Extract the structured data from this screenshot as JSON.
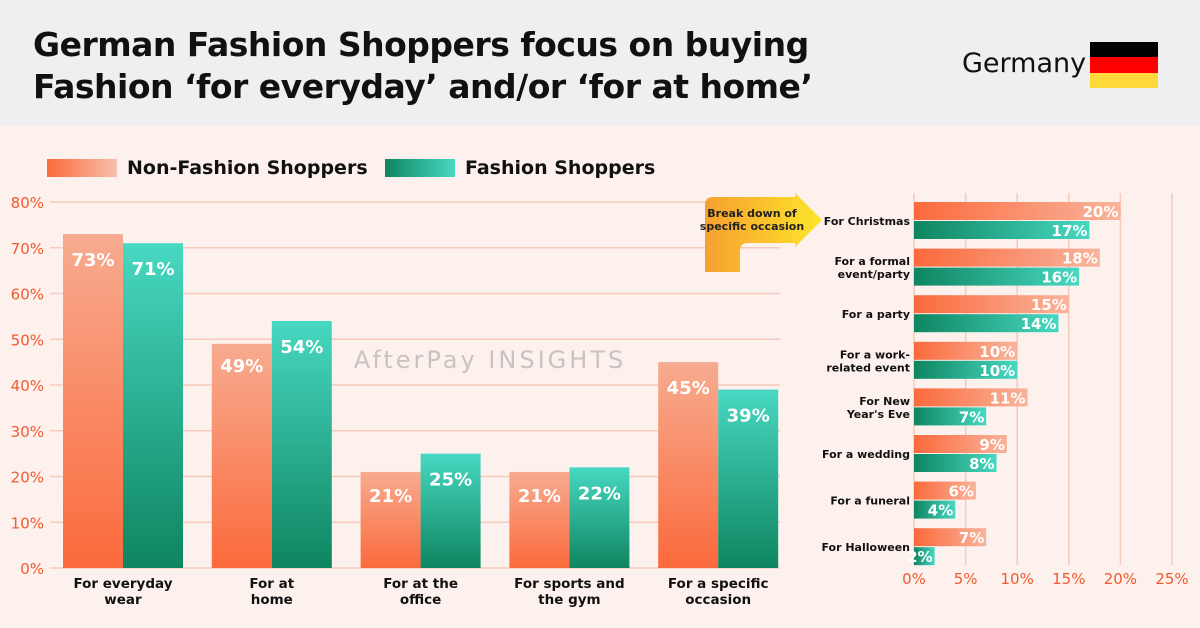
{
  "header": {
    "title_line1": "German Fashion Shoppers focus on buying",
    "title_line2": "Fashion ‘for everyday’ and/or ‘for at home’",
    "country": "Germany"
  },
  "watermark": "AfterPay INSIGHTS",
  "colors": {
    "orange": "#fb6a3c",
    "orange_light": "#f7ab90",
    "green": "#0e8560",
    "green_light": "#48d8c2",
    "grid": "#f6c9bc",
    "axis_text": "#ef5a2e"
  },
  "chart_data": [
    {
      "type": "bar",
      "title": "",
      "xlabel": "",
      "ylabel": "",
      "ylim": [
        0,
        80
      ],
      "yticks": [
        "0%",
        "10%",
        "20%",
        "30%",
        "40%",
        "50%",
        "60%",
        "70%",
        "80%"
      ],
      "legend": [
        "Non-Fashion Shoppers",
        "Fashion Shoppers"
      ],
      "legend_position": "top-left",
      "categories": [
        [
          "For everyday",
          "wear"
        ],
        [
          "For at",
          "home"
        ],
        [
          "For at the",
          "office"
        ],
        [
          "For sports and",
          "the gym"
        ],
        [
          "For a specific",
          "occasion"
        ]
      ],
      "series": [
        {
          "name": "Non-Fashion Shoppers",
          "values": [
            73,
            49,
            21,
            21,
            45
          ],
          "labels": [
            "73%",
            "49%",
            "21%",
            "21%",
            "45%"
          ]
        },
        {
          "name": "Fashion Shoppers",
          "values": [
            71,
            54,
            25,
            22,
            39
          ],
          "labels": [
            "71%",
            "54%",
            "25%",
            "22%",
            "39%"
          ]
        }
      ]
    },
    {
      "type": "bar",
      "orientation": "horizontal",
      "annotation": [
        "Break down of",
        "specific occasion"
      ],
      "xlim": [
        0,
        25
      ],
      "xticks": [
        "0%",
        "5%",
        "10%",
        "15%",
        "20%",
        "25%"
      ],
      "categories": [
        [
          "For Christmas"
        ],
        [
          "For a formal",
          "event/party"
        ],
        [
          "For a party"
        ],
        [
          "For a work-",
          "related event"
        ],
        [
          "For New",
          "Year's Eve"
        ],
        [
          "For a wedding"
        ],
        [
          "For a funeral"
        ],
        [
          "For Halloween"
        ]
      ],
      "series": [
        {
          "name": "Non-Fashion Shoppers",
          "values": [
            20,
            18,
            15,
            10,
            11,
            9,
            6,
            7
          ],
          "labels": [
            "20%",
            "18%",
            "15%",
            "10%",
            "11%",
            "9%",
            "6%",
            "7%"
          ]
        },
        {
          "name": "Fashion Shoppers",
          "values": [
            17,
            16,
            14,
            10,
            7,
            8,
            4,
            2
          ],
          "labels": [
            "17%",
            "16%",
            "14%",
            "10%",
            "7%",
            "8%",
            "4%",
            "2%"
          ]
        }
      ]
    }
  ]
}
